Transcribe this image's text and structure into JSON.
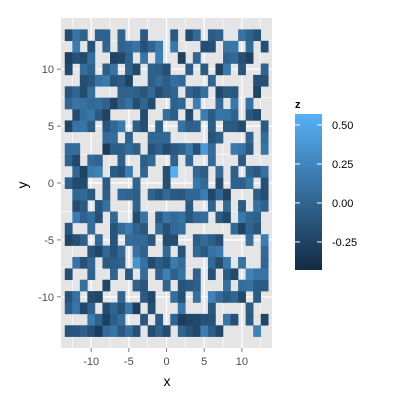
{
  "chart_data": {
    "type": "heatmap",
    "title": "",
    "xlabel": "x",
    "ylabel": "y",
    "xlim": [
      -14,
      14
    ],
    "ylim": [
      -14.5,
      14.5
    ],
    "x_ticks": [
      -10,
      -5,
      0,
      5,
      10
    ],
    "y_ticks": [
      -10,
      -5,
      0,
      5,
      10
    ],
    "x_tick_labels": [
      "-10",
      "-5",
      "0",
      "5",
      "10"
    ],
    "y_tick_labels": [
      "-10",
      "-5",
      "0",
      "5",
      "10"
    ],
    "grid": true,
    "panel_background": "#e5e5e5",
    "grid_color": "#ffffff",
    "tile_size": 1,
    "x_range": [
      -13,
      13
    ],
    "y_range": [
      -13,
      13
    ],
    "legend": {
      "title": "z",
      "position": "right",
      "breaks": [
        0.5,
        0.25,
        0.0,
        -0.25
      ],
      "labels": [
        "0.50",
        "0.25",
        "0.00",
        "-0.25"
      ],
      "zlim": [
        -0.43,
        0.57
      ],
      "low_color": "#132b43",
      "high_color": "#56b1f7"
    },
    "na_fraction": 0.42,
    "seed": 20240517,
    "hotspots": [
      {
        "x": 1,
        "y": 1,
        "z": 0.55
      },
      {
        "x": 5,
        "y": 3,
        "z": 0.4
      },
      {
        "x": -4,
        "y": -7,
        "z": 0.35
      }
    ]
  }
}
